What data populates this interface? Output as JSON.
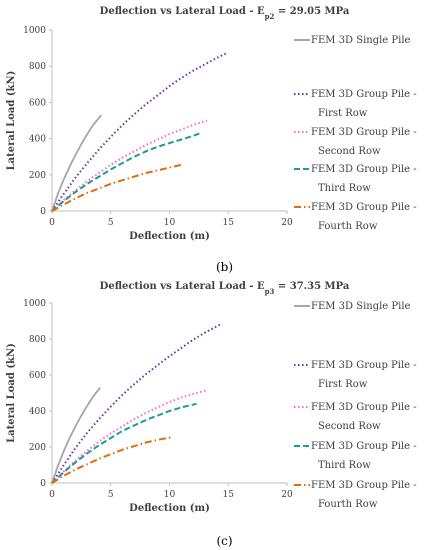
{
  "chart_data": [
    {
      "type": "line",
      "title": "Deflection vs Lateral Load - E",
      "title_sub": "p2",
      "title_suffix": " = 29.05 MPa",
      "xlabel": "Deflection (m)",
      "ylabel": "Lateral Load (kN)",
      "xlim": [
        0,
        20
      ],
      "ylim": [
        0,
        1000
      ],
      "xticks": [
        0,
        5,
        10,
        15,
        20
      ],
      "yticks": [
        0,
        200,
        400,
        600,
        800,
        1000
      ],
      "legend_position": "right",
      "caption": "(b)",
      "series": [
        {
          "name": "FEM 3D Single Pile",
          "color": "#a6a6a6",
          "style": "solid",
          "x": [
            0,
            0.5,
            1,
            1.5,
            2,
            2.5,
            3,
            3.5,
            4.2
          ],
          "y": [
            0,
            95,
            175,
            245,
            310,
            370,
            425,
            475,
            530
          ]
        },
        {
          "name": "FEM 3D Group Pile - First Row",
          "color": "#7030a0",
          "style": "dotted",
          "x": [
            0,
            1,
            2,
            3,
            4,
            5,
            6,
            7,
            8,
            9,
            10,
            11,
            12,
            13,
            14,
            14.8
          ],
          "y": [
            0,
            95,
            185,
            265,
            340,
            410,
            475,
            535,
            590,
            640,
            690,
            735,
            775,
            810,
            845,
            870
          ]
        },
        {
          "name": "FEM 3D Group Pile - Second Row",
          "color": "#ff66cc",
          "style": "dotted",
          "x": [
            0,
            1,
            2,
            3,
            4,
            5,
            6,
            7,
            8,
            9,
            10,
            11,
            12,
            13.2
          ],
          "y": [
            0,
            60,
            115,
            165,
            210,
            255,
            295,
            330,
            365,
            395,
            425,
            450,
            475,
            500
          ]
        },
        {
          "name": "FEM 3D Group Pile - Third Row",
          "color": "#1a9a9a",
          "style": "dashed",
          "x": [
            0,
            1,
            2,
            3,
            4,
            5,
            6,
            7,
            8,
            9,
            10,
            11,
            12,
            12.6
          ],
          "y": [
            0,
            55,
            105,
            150,
            190,
            230,
            265,
            300,
            330,
            355,
            375,
            395,
            415,
            430
          ]
        },
        {
          "name": "FEM 3D Group Pile - Fourth Row",
          "color": "#e36c0a",
          "style": "dashdot",
          "x": [
            0,
            1,
            2,
            3,
            4,
            5,
            6,
            7,
            8,
            9,
            10,
            11
          ],
          "y": [
            0,
            35,
            70,
            100,
            125,
            150,
            170,
            190,
            210,
            225,
            240,
            255
          ]
        }
      ]
    },
    {
      "type": "line",
      "title": "Deflection vs Lateral Load - E",
      "title_sub": "p3",
      "title_suffix": " = 37.35 MPa",
      "xlabel": "Deflection (m)",
      "ylabel": "Lateral Load (kN)",
      "xlim": [
        0,
        20
      ],
      "ylim": [
        0,
        1000
      ],
      "xticks": [
        0,
        5,
        10,
        15,
        20
      ],
      "yticks": [
        0,
        200,
        400,
        600,
        800,
        1000
      ],
      "legend_position": "right",
      "caption": "(c)",
      "series": [
        {
          "name": "FEM 3D Single Pile",
          "color": "#a6a6a6",
          "style": "solid",
          "x": [
            0,
            0.5,
            1,
            1.5,
            2,
            2.5,
            3,
            3.5,
            4.1
          ],
          "y": [
            0,
            95,
            178,
            250,
            315,
            375,
            430,
            480,
            530
          ]
        },
        {
          "name": "FEM 3D Group Pile - First Row",
          "color": "#7030a0",
          "style": "dotted",
          "x": [
            0,
            1,
            2,
            3,
            4,
            5,
            6,
            7,
            8,
            9,
            10,
            11,
            12,
            13,
            14.3
          ],
          "y": [
            0,
            100,
            195,
            280,
            355,
            425,
            490,
            550,
            605,
            655,
            705,
            750,
            795,
            835,
            880
          ]
        },
        {
          "name": "FEM 3D Group Pile - Second Row",
          "color": "#ff66cc",
          "style": "dotted",
          "x": [
            0,
            1,
            2,
            3,
            4,
            5,
            6,
            7,
            8,
            9,
            10,
            11,
            12,
            13.2
          ],
          "y": [
            0,
            65,
            125,
            180,
            230,
            275,
            315,
            355,
            390,
            420,
            450,
            475,
            495,
            515
          ]
        },
        {
          "name": "FEM 3D Group Pile - Third Row",
          "color": "#1a9a9a",
          "style": "dashed",
          "x": [
            0,
            1,
            2,
            3,
            4,
            5,
            6,
            7,
            8,
            9,
            10,
            11,
            12.3
          ],
          "y": [
            0,
            60,
            115,
            165,
            210,
            250,
            290,
            320,
            350,
            375,
            400,
            420,
            440
          ]
        },
        {
          "name": "FEM 3D Group Pile - Fourth Row",
          "color": "#e36c0a",
          "style": "dashdot",
          "x": [
            0,
            1,
            2,
            3,
            4,
            5,
            6,
            7,
            8,
            9,
            10.2
          ],
          "y": [
            0,
            40,
            75,
            105,
            135,
            160,
            185,
            205,
            225,
            240,
            255
          ]
        }
      ]
    }
  ]
}
